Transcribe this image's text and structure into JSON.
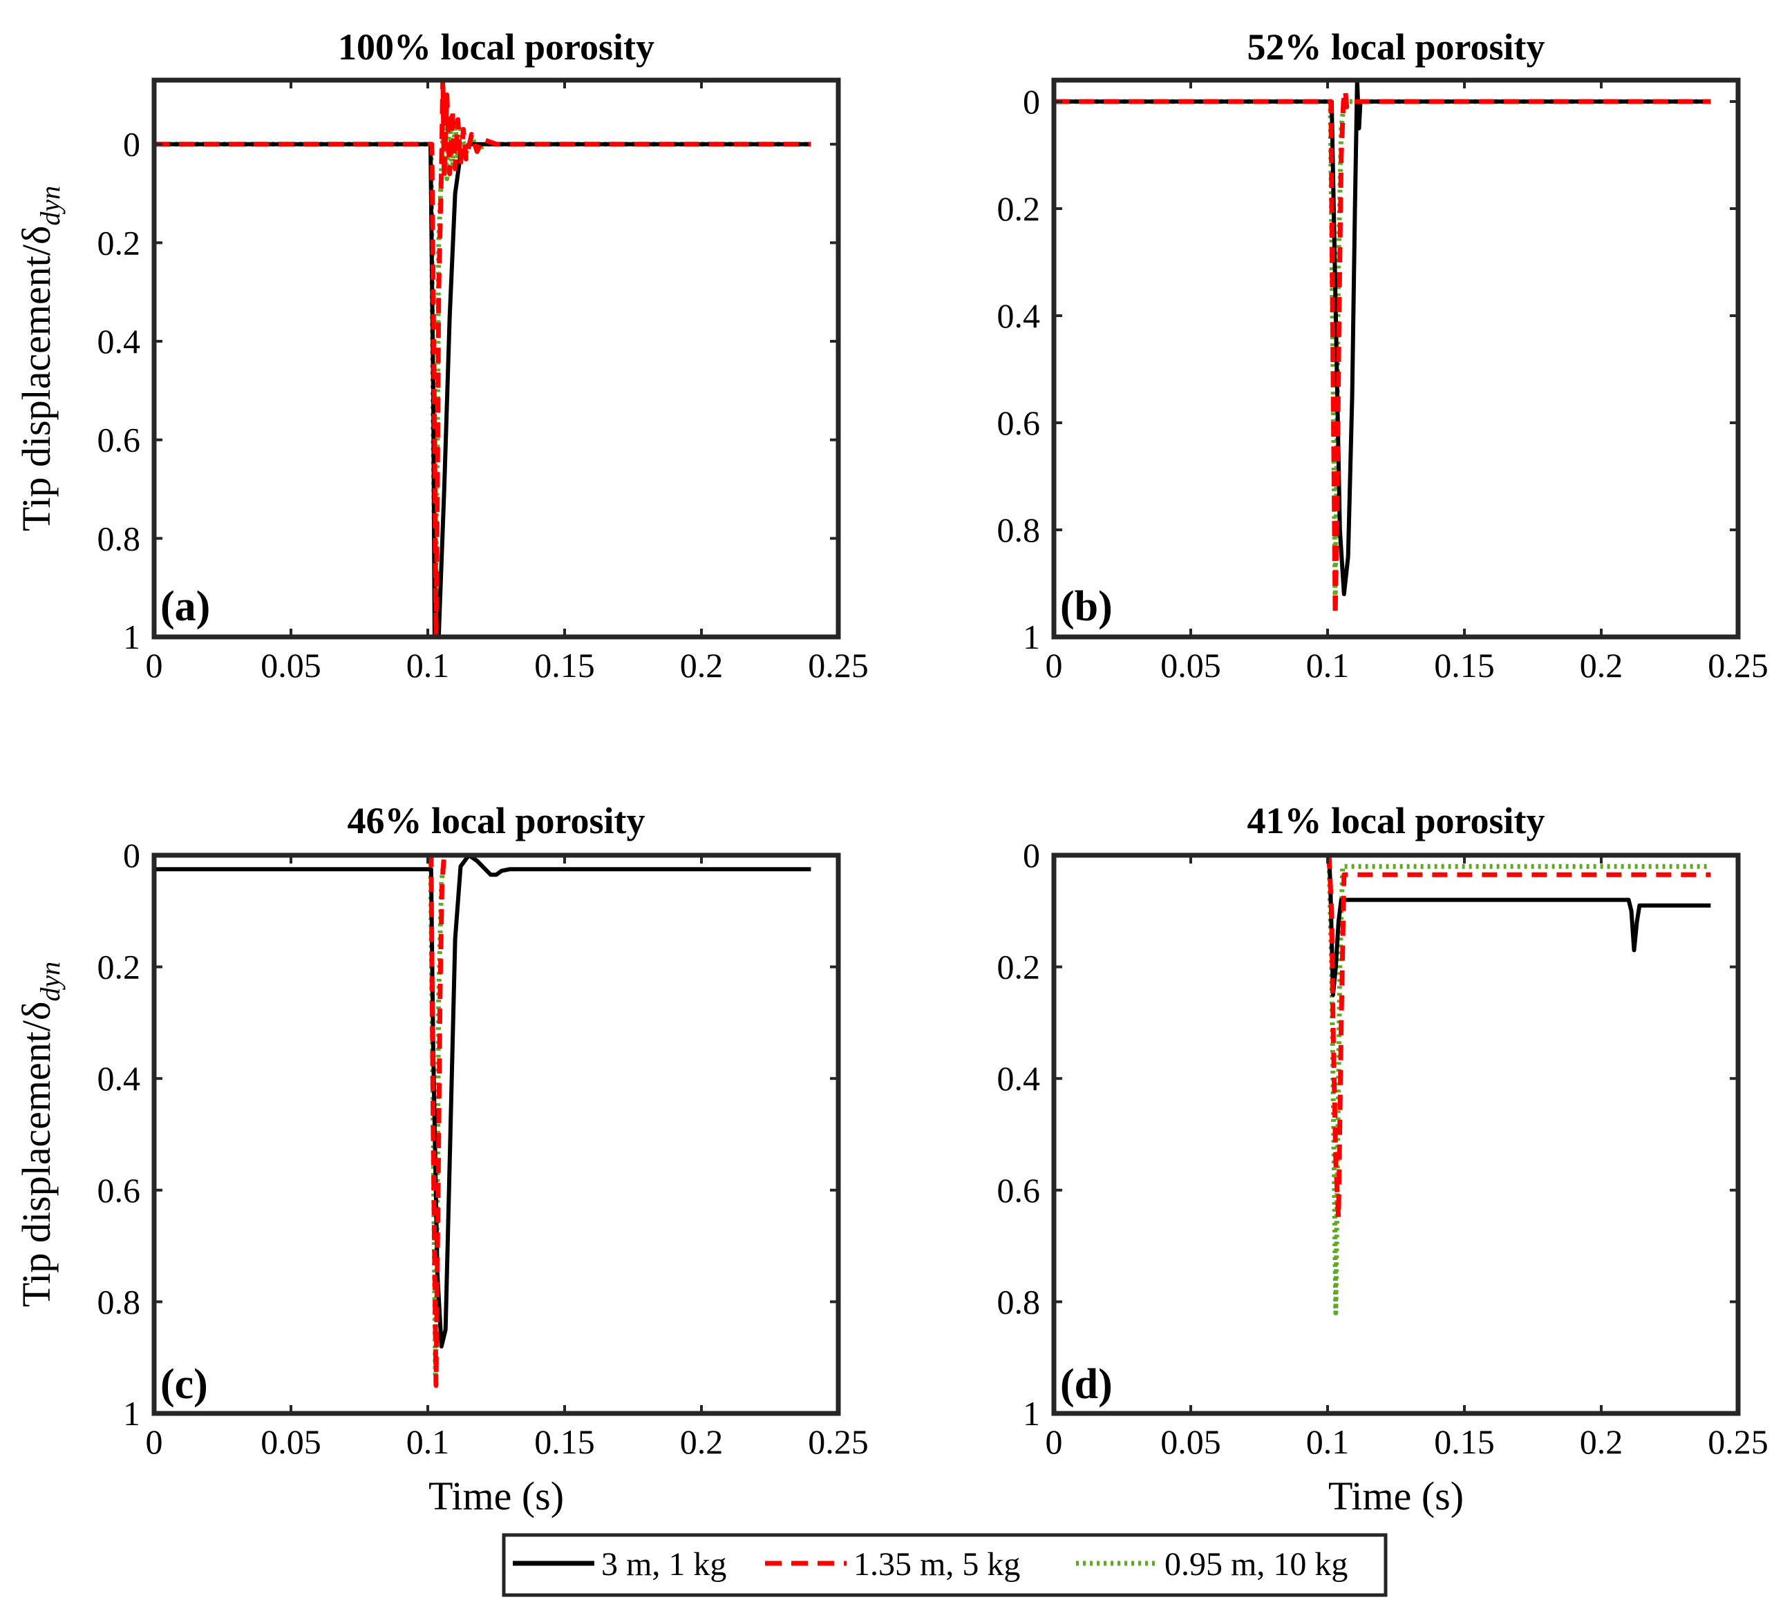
{
  "figure": {
    "ylabel": "Tip displacement/δ",
    "ylabel_sub": "dyn",
    "xlabel": "Time (s)"
  },
  "legend": {
    "placement": "bottom-center",
    "entries": [
      {
        "label": "3 m, 1 kg",
        "color": "#000000",
        "style": "solid"
      },
      {
        "label": "1.35 m, 5 kg",
        "color": "#ff0000",
        "style": "dashed"
      },
      {
        "label": "0.95 m, 10 kg",
        "color": "#5faa1e",
        "style": "dotted"
      }
    ]
  },
  "chart_data": [
    {
      "type": "line",
      "panel": "(a)",
      "title": "100% local porosity",
      "xlabel": "",
      "ylabel": "Tip displacement/δdyn",
      "xlim": [
        0,
        0.25
      ],
      "ylim": [
        -0.13,
        1
      ],
      "y_reversed": true,
      "xticks": [
        0,
        0.05,
        0.1,
        0.15,
        0.2,
        0.25
      ],
      "xtick_labels": [
        "0",
        "0.05",
        "0.1",
        "0.15",
        "0.2",
        "0.25"
      ],
      "yticks": [
        0,
        0.2,
        0.4,
        0.6,
        0.8,
        1
      ],
      "ytick_labels": [
        "0",
        "0.2",
        "0.4",
        "0.6",
        "0.8",
        "1"
      ],
      "series": [
        {
          "name": "3 m, 1 kg",
          "x": [
            0,
            0.101,
            0.102,
            0.1025,
            0.104,
            0.106,
            0.108,
            0.11,
            0.112,
            0.115,
            0.125,
            0.24
          ],
          "y": [
            0,
            0,
            0.5,
            1.0,
            1.0,
            0.7,
            0.35,
            0.1,
            0.02,
            0,
            0,
            0
          ]
        },
        {
          "name": "1.35 m, 5 kg",
          "x": [
            0,
            0.1015,
            0.1025,
            0.103,
            0.1035,
            0.104,
            0.105,
            0.1055,
            0.106,
            0.107,
            0.108,
            0.109,
            0.11,
            0.111,
            0.112,
            0.113,
            0.114,
            0.116,
            0.118,
            0.12,
            0.125,
            0.24
          ],
          "y": [
            0,
            0,
            0.6,
            1.0,
            0.7,
            0.3,
            0.05,
            -0.14,
            0.07,
            -0.1,
            0.06,
            -0.07,
            0.05,
            -0.05,
            0.04,
            -0.03,
            0.03,
            -0.02,
            0.015,
            -0.01,
            0,
            0
          ]
        },
        {
          "name": "0.95 m, 10 kg",
          "x": [
            0,
            0.1012,
            0.102,
            0.1028,
            0.1035,
            0.104,
            0.105,
            0.106,
            0.107,
            0.108,
            0.109,
            0.11,
            0.111,
            0.112,
            0.114,
            0.116,
            0.118,
            0.122,
            0.24
          ],
          "y": [
            0,
            0,
            0.6,
            0.98,
            0.6,
            0.2,
            0.05,
            -0.08,
            0.07,
            -0.06,
            0.05,
            -0.04,
            0.03,
            -0.03,
            0.02,
            -0.015,
            0.01,
            0,
            0
          ]
        }
      ]
    },
    {
      "type": "line",
      "panel": "(b)",
      "title": "52% local porosity",
      "xlabel": "",
      "ylabel": "",
      "xlim": [
        0,
        0.25
      ],
      "ylim": [
        -0.04,
        1
      ],
      "y_reversed": true,
      "xticks": [
        0,
        0.05,
        0.1,
        0.15,
        0.2,
        0.25
      ],
      "xtick_labels": [
        "0",
        "0.05",
        "0.1",
        "0.15",
        "0.2",
        "0.25"
      ],
      "yticks": [
        0,
        0.2,
        0.4,
        0.6,
        0.8,
        1
      ],
      "ytick_labels": [
        "0",
        "0.2",
        "0.4",
        "0.6",
        "0.8",
        "1"
      ],
      "series": [
        {
          "name": "3 m, 1 kg",
          "x": [
            0,
            0.1015,
            0.103,
            0.1045,
            0.106,
            0.1075,
            0.109,
            0.11,
            0.1108,
            0.1115,
            0.112,
            0.114,
            0.24
          ],
          "y": [
            0,
            0,
            0.4,
            0.8,
            0.92,
            0.85,
            0.55,
            0.2,
            -0.04,
            0.05,
            0,
            0,
            0
          ]
        },
        {
          "name": "1.35 m, 5 kg",
          "x": [
            0,
            0.1012,
            0.102,
            0.1028,
            0.1035,
            0.1042,
            0.105,
            0.1058,
            0.1065,
            0.107,
            0.108,
            0.24
          ],
          "y": [
            0,
            0,
            0.5,
            0.96,
            0.75,
            0.4,
            0.1,
            0.0,
            -0.02,
            0.01,
            0,
            0
          ]
        },
        {
          "name": "0.95 m, 10 kg",
          "x": [
            0,
            0.101,
            0.102,
            0.1028,
            0.1035,
            0.104,
            0.105,
            0.106,
            0.107,
            0.24
          ],
          "y": [
            0,
            0,
            0.5,
            0.93,
            0.6,
            0.3,
            0.05,
            0,
            0,
            0
          ]
        }
      ]
    },
    {
      "type": "line",
      "panel": "(c)",
      "title": "46% local porosity",
      "xlabel": "Time (s)",
      "ylabel": "Tip displacement/δdyn",
      "xlim": [
        0,
        0.25
      ],
      "ylim": [
        0,
        1
      ],
      "y_reversed": true,
      "xticks": [
        0,
        0.05,
        0.1,
        0.15,
        0.2,
        0.25
      ],
      "xtick_labels": [
        "0",
        "0.05",
        "0.1",
        "0.15",
        "0.2",
        "0.25"
      ],
      "yticks": [
        0,
        0.2,
        0.4,
        0.6,
        0.8,
        1
      ],
      "ytick_labels": [
        "0",
        "0.2",
        "0.4",
        "0.6",
        "0.8",
        "1"
      ],
      "series": [
        {
          "name": "3 m, 1 kg",
          "x": [
            0,
            0.1012,
            0.102,
            0.1035,
            0.105,
            0.1065,
            0.108,
            0.11,
            0.112,
            0.115,
            0.118,
            0.12,
            0.123,
            0.125,
            0.127,
            0.13,
            0.24
          ],
          "y": [
            0.025,
            0.025,
            0.35,
            0.75,
            0.88,
            0.85,
            0.55,
            0.15,
            0.02,
            0.0,
            0.01,
            0.02,
            0.035,
            0.035,
            0.028,
            0.025,
            0.025
          ]
        },
        {
          "name": "1.35 m, 5 kg",
          "x": [
            0,
            0.1012,
            0.102,
            0.103,
            0.1038,
            0.1045,
            0.1052,
            0.106,
            0.107,
            0.24
          ],
          "y": [
            0,
            0,
            0.5,
            0.95,
            0.6,
            0.25,
            0.05,
            0,
            0,
            0
          ]
        },
        {
          "name": "0.95 m, 10 kg",
          "x": [
            0,
            0.101,
            0.102,
            0.1028,
            0.1035,
            0.104,
            0.105,
            0.106,
            0.107,
            0.24
          ],
          "y": [
            0,
            0,
            0.5,
            0.93,
            0.6,
            0.25,
            0.05,
            0,
            0,
            0
          ]
        }
      ]
    },
    {
      "type": "line",
      "panel": "(d)",
      "title": "41% local porosity",
      "xlabel": "Time (s)",
      "ylabel": "",
      "xlim": [
        0,
        0.25
      ],
      "ylim": [
        0,
        1
      ],
      "y_reversed": true,
      "xticks": [
        0,
        0.05,
        0.1,
        0.15,
        0.2,
        0.25
      ],
      "xtick_labels": [
        "0",
        "0.05",
        "0.1",
        "0.15",
        "0.2",
        "0.25"
      ],
      "yticks": [
        0,
        0.2,
        0.4,
        0.6,
        0.8,
        1
      ],
      "ytick_labels": [
        "0",
        "0.2",
        "0.4",
        "0.6",
        "0.8",
        "1"
      ],
      "series": [
        {
          "name": "3 m, 1 kg",
          "x": [
            0,
            0.1005,
            0.101,
            0.102,
            0.103,
            0.104,
            0.105,
            0.106,
            0.107,
            0.21,
            0.211,
            0.212,
            0.213,
            0.214,
            0.215,
            0.24
          ],
          "y": [
            0,
            0,
            0.05,
            0.25,
            0.2,
            0.12,
            0.08,
            0.08,
            0.08,
            0.08,
            0.1,
            0.17,
            0.12,
            0.09,
            0.09,
            0.09
          ]
        },
        {
          "name": "1.35 m, 5 kg",
          "x": [
            0,
            0.1005,
            0.1015,
            0.102,
            0.103,
            0.104,
            0.105,
            0.106,
            0.107,
            0.24
          ],
          "y": [
            0,
            0,
            0.1,
            0.3,
            0.55,
            0.65,
            0.3,
            0.035,
            0.035,
            0.035
          ]
        },
        {
          "name": "0.95 m, 10 kg",
          "x": [
            0,
            0.1005,
            0.1015,
            0.1025,
            0.103,
            0.1035,
            0.1045,
            0.1055,
            0.1065,
            0.24
          ],
          "y": [
            0,
            0,
            0.2,
            0.6,
            0.82,
            0.6,
            0.2,
            0.02,
            0.02,
            0.02
          ]
        }
      ]
    }
  ]
}
